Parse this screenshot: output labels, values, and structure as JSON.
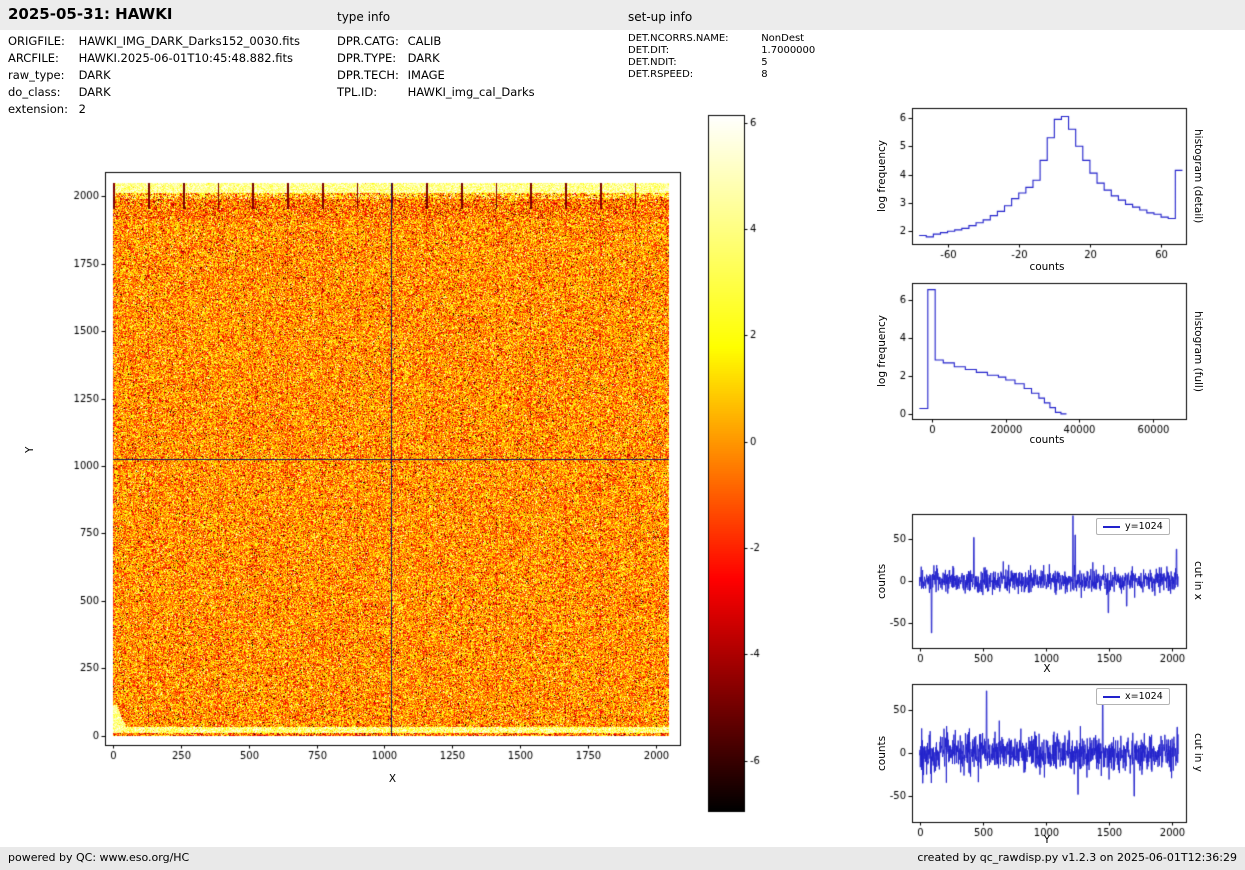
{
  "header": {
    "title": "2025-05-31: HAWKI",
    "type_info_label": "type info",
    "setup_info_label": "set-up info"
  },
  "file_info": {
    "rows": [
      {
        "label": "ORIGFILE:",
        "value": "HAWKI_IMG_DARK_Darks152_0030.fits"
      },
      {
        "label": "ARCFILE:",
        "value": "HAWKI.2025-06-01T10:45:48.882.fits"
      },
      {
        "label": "raw_type:",
        "value": "DARK"
      },
      {
        "label": "do_class:",
        "value": "DARK"
      },
      {
        "label": "extension:",
        "value": "2"
      }
    ]
  },
  "type_info": {
    "rows": [
      {
        "label": "DPR.CATG:",
        "value": "CALIB"
      },
      {
        "label": "DPR.TYPE:",
        "value": "DARK"
      },
      {
        "label": "DPR.TECH:",
        "value": "IMAGE"
      },
      {
        "label": "TPL.ID:",
        "value": "HAWKI_img_cal_Darks"
      }
    ]
  },
  "setup_info": {
    "rows": [
      {
        "label": "DET.NCORRS.NAME:",
        "value": "NonDest"
      },
      {
        "label": "DET.DIT:",
        "value": "1.7000000"
      },
      {
        "label": "DET.NDIT:",
        "value": "5"
      },
      {
        "label": "DET.RSPEED:",
        "value": "8"
      }
    ]
  },
  "footer": {
    "left": "powered by QC: www.eso.org/HC",
    "right": "created by qc_rawdisp.py v1.2.3 on 2025-06-01T12:36:29"
  },
  "colors": {
    "line": "#2222cc",
    "crosshair": "#14145a",
    "axis": "#000000"
  },
  "chart_data": [
    {
      "id": "main_image",
      "type": "heatmap",
      "xlabel": "X",
      "ylabel": "Y",
      "xticks": [
        0,
        250,
        500,
        750,
        1000,
        1250,
        1500,
        1750,
        2000
      ],
      "yticks": [
        0,
        250,
        500,
        750,
        1000,
        1250,
        1500,
        1750,
        2000
      ],
      "xlim": [
        -30,
        2090
      ],
      "ylim": [
        -35,
        2090
      ],
      "extent": [
        0,
        2048
      ],
      "colormap": "hot",
      "vmin": -6.95,
      "vmax": 6.15,
      "features": {
        "noise_sigma": 1.7,
        "channel_stripe_period": 128,
        "bright_top_band_y": [
          2014,
          2048
        ],
        "bright_bottom_band_y": [
          14,
          36
        ],
        "crosshair_x": 1024,
        "crosshair_y": 1024
      }
    },
    {
      "id": "colorbar",
      "type": "colorbar",
      "colormap": "hot",
      "vmin": -6.95,
      "vmax": 6.15,
      "ticks": [
        6,
        4,
        2,
        0,
        -2,
        -4,
        -6
      ]
    },
    {
      "id": "hist_detail",
      "type": "line",
      "xlabel": "counts",
      "ylabel": "log frequency",
      "side_label": "histogram (detail)",
      "xlim": [
        -80,
        74
      ],
      "ylim": [
        1.55,
        6.35
      ],
      "xticks": [
        -60,
        -20,
        20,
        60
      ],
      "yticks": [
        2,
        3,
        4,
        5,
        6
      ],
      "bin_width": 4,
      "bins": [
        [
          -76,
          1.85
        ],
        [
          -72,
          1.8
        ],
        [
          -68,
          1.9
        ],
        [
          -64,
          1.95
        ],
        [
          -60,
          2.0
        ],
        [
          -56,
          2.05
        ],
        [
          -52,
          2.1
        ],
        [
          -48,
          2.2
        ],
        [
          -44,
          2.3
        ],
        [
          -40,
          2.4
        ],
        [
          -36,
          2.55
        ],
        [
          -32,
          2.7
        ],
        [
          -28,
          2.9
        ],
        [
          -24,
          3.15
        ],
        [
          -20,
          3.35
        ],
        [
          -16,
          3.55
        ],
        [
          -12,
          3.8
        ],
        [
          -8,
          4.5
        ],
        [
          -4,
          5.3
        ],
        [
          0,
          5.95
        ],
        [
          4,
          6.05
        ],
        [
          8,
          5.6
        ],
        [
          12,
          5.0
        ],
        [
          16,
          4.5
        ],
        [
          20,
          4.05
        ],
        [
          24,
          3.7
        ],
        [
          28,
          3.45
        ],
        [
          32,
          3.25
        ],
        [
          36,
          3.1
        ],
        [
          40,
          2.95
        ],
        [
          44,
          2.85
        ],
        [
          48,
          2.75
        ],
        [
          52,
          2.65
        ],
        [
          56,
          2.6
        ],
        [
          60,
          2.5
        ],
        [
          64,
          2.45
        ],
        [
          68,
          4.15
        ]
      ]
    },
    {
      "id": "hist_full",
      "type": "line",
      "xlabel": "counts",
      "ylabel": "log frequency",
      "side_label": "histogram (full)",
      "xlim": [
        -5500,
        69000
      ],
      "ylim": [
        -0.25,
        6.9
      ],
      "xticks": [
        0,
        20000,
        40000,
        60000
      ],
      "yticks": [
        0,
        2,
        4,
        6
      ],
      "points": [
        [
          -3500,
          0.3
        ],
        [
          -1200,
          0.3
        ],
        [
          -1200,
          6.55
        ],
        [
          800,
          6.55
        ],
        [
          800,
          2.85
        ],
        [
          3000,
          2.85
        ],
        [
          3000,
          2.7
        ],
        [
          6000,
          2.7
        ],
        [
          6000,
          2.5
        ],
        [
          9000,
          2.5
        ],
        [
          9000,
          2.35
        ],
        [
          12000,
          2.35
        ],
        [
          12000,
          2.2
        ],
        [
          15000,
          2.2
        ],
        [
          15000,
          2.05
        ],
        [
          18000,
          2.05
        ],
        [
          18000,
          1.95
        ],
        [
          20000,
          1.95
        ],
        [
          20000,
          1.8
        ],
        [
          22500,
          1.8
        ],
        [
          22500,
          1.6
        ],
        [
          25000,
          1.6
        ],
        [
          25000,
          1.35
        ],
        [
          27000,
          1.35
        ],
        [
          27000,
          1.1
        ],
        [
          29000,
          1.1
        ],
        [
          29000,
          0.85
        ],
        [
          30500,
          0.85
        ],
        [
          30500,
          0.6
        ],
        [
          32000,
          0.6
        ],
        [
          32000,
          0.35
        ],
        [
          33500,
          0.35
        ],
        [
          33500,
          0.1
        ],
        [
          35000,
          0.1
        ],
        [
          35000,
          0.02
        ],
        [
          36500,
          0.02
        ]
      ]
    },
    {
      "id": "cut_x",
      "type": "line",
      "xlabel": "X",
      "ylabel": "counts",
      "side_label": "cut in x",
      "legend": "y=1024",
      "xlim": [
        -60,
        2110
      ],
      "ylim": [
        -80,
        80
      ],
      "xticks": [
        0,
        500,
        1000,
        1500,
        2000
      ],
      "yticks": [
        -50,
        0,
        50
      ],
      "noise_sigma": 7,
      "seed": 77,
      "spikes": [
        {
          "x": 95,
          "y": -62
        },
        {
          "x": 430,
          "y": 52
        },
        {
          "x": 1215,
          "y": 78
        },
        {
          "x": 1232,
          "y": 55
        },
        {
          "x": 1495,
          "y": -38
        },
        {
          "x": 1640,
          "y": -30
        },
        {
          "x": 2035,
          "y": 38
        }
      ]
    },
    {
      "id": "cut_y",
      "type": "line",
      "xlabel": "Y",
      "ylabel": "counts",
      "side_label": "cut in y",
      "legend": "x=1024",
      "xlim": [
        -60,
        2110
      ],
      "ylim": [
        -80,
        80
      ],
      "xticks": [
        0,
        500,
        1000,
        1500,
        2000
      ],
      "yticks": [
        -50,
        0,
        50
      ],
      "noise_sigma": 11,
      "seed": 99,
      "spikes": [
        {
          "x": 25,
          "y": -35
        },
        {
          "x": 530,
          "y": 72
        },
        {
          "x": 1255,
          "y": -48
        },
        {
          "x": 1450,
          "y": 66
        },
        {
          "x": 1700,
          "y": -50
        },
        {
          "x": 2040,
          "y": 30
        }
      ]
    }
  ]
}
